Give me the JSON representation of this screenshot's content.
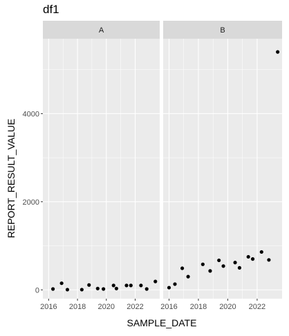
{
  "chart_data": {
    "type": "scatter",
    "title": "df1",
    "xlabel": "SAMPLE_DATE",
    "ylabel": "REPORT_RESULT_VALUE",
    "xlim": [
      2015.6,
      2023.7
    ],
    "ylim": [
      -200,
      5700
    ],
    "x_ticks": [
      2016,
      2018,
      2020,
      2022
    ],
    "y_ticks": [
      0,
      2000,
      4000
    ],
    "grid": true,
    "colors": {
      "panel": "#ebebeb",
      "strip": "#d9d9d9",
      "grid_major": "#ffffff",
      "point": "#000000"
    },
    "facets": [
      {
        "label": "A",
        "points": [
          {
            "x": 2016.3,
            "y": 20
          },
          {
            "x": 2016.9,
            "y": 150
          },
          {
            "x": 2017.3,
            "y": 5
          },
          {
            "x": 2018.3,
            "y": 5
          },
          {
            "x": 2018.8,
            "y": 110
          },
          {
            "x": 2019.4,
            "y": 30
          },
          {
            "x": 2019.8,
            "y": 20
          },
          {
            "x": 2020.5,
            "y": 100
          },
          {
            "x": 2020.7,
            "y": 30
          },
          {
            "x": 2021.4,
            "y": 100
          },
          {
            "x": 2021.7,
            "y": 100
          },
          {
            "x": 2022.4,
            "y": 100
          },
          {
            "x": 2022.8,
            "y": 20
          },
          {
            "x": 2023.4,
            "y": 190
          }
        ]
      },
      {
        "label": "B",
        "points": [
          {
            "x": 2016.0,
            "y": 50
          },
          {
            "x": 2016.4,
            "y": 130
          },
          {
            "x": 2016.9,
            "y": 490
          },
          {
            "x": 2017.3,
            "y": 300
          },
          {
            "x": 2018.3,
            "y": 580
          },
          {
            "x": 2018.8,
            "y": 430
          },
          {
            "x": 2019.4,
            "y": 670
          },
          {
            "x": 2019.7,
            "y": 540
          },
          {
            "x": 2020.5,
            "y": 620
          },
          {
            "x": 2020.8,
            "y": 500
          },
          {
            "x": 2021.4,
            "y": 750
          },
          {
            "x": 2021.7,
            "y": 700
          },
          {
            "x": 2022.3,
            "y": 860
          },
          {
            "x": 2022.8,
            "y": 680
          },
          {
            "x": 2023.4,
            "y": 5400
          }
        ]
      }
    ]
  }
}
